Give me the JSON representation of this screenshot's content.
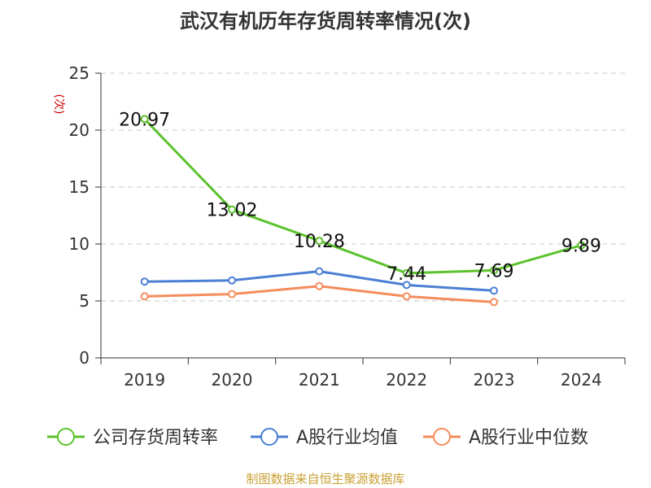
{
  "title": "武汉有机历年存货周转率情况(次)",
  "footer": "制图数据来自恒生聚源数据库",
  "chart_data": {
    "type": "line",
    "title": "武汉有机历年存货周转率情况(次)",
    "ylabel": "(次)",
    "xlabel": "",
    "categories": [
      "2019",
      "2020",
      "2021",
      "2022",
      "2023",
      "2024"
    ],
    "ylim": [
      0,
      25
    ],
    "yticks": [
      0,
      5,
      10,
      15,
      20,
      25
    ],
    "grid": true,
    "legend_position": "bottom",
    "series": [
      {
        "name": "公司存货周转率",
        "color": "#5cc22d",
        "values": [
          20.97,
          13.02,
          10.28,
          7.44,
          7.69,
          9.89
        ],
        "labels": [
          "20.97",
          "13.02",
          "10.28",
          "7.44",
          "7.69",
          "9.89"
        ]
      },
      {
        "name": "A股行业均值",
        "color": "#4a7fd4",
        "values": [
          6.7,
          6.8,
          7.6,
          6.4,
          5.9,
          null
        ]
      },
      {
        "name": "A股行业中位数",
        "color": "#f58c5c",
        "values": [
          5.4,
          5.6,
          6.3,
          5.4,
          4.9,
          null
        ]
      }
    ]
  }
}
